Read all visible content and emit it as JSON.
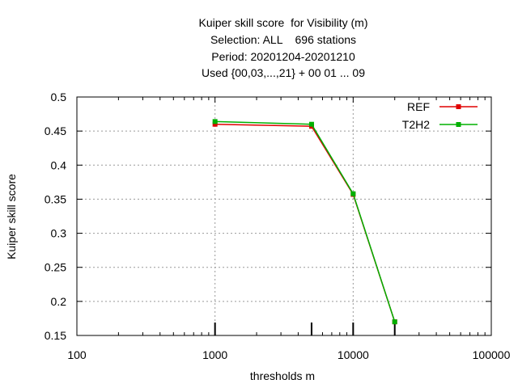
{
  "chart_data": {
    "type": "line",
    "title_lines": [
      "Kuiper skill score  for Visibility (m)",
      "Selection: ALL    696 stations",
      "Period: 20201204-20201210",
      "Used {00,03,...,21} + 00 01 ... 09"
    ],
    "xlabel": "thresholds m",
    "ylabel": "Kuiper skill score",
    "x_scale": "log",
    "xlim": [
      100,
      100000
    ],
    "ylim": [
      0.15,
      0.5
    ],
    "x_ticks": [
      100,
      1000,
      10000,
      100000
    ],
    "x_tick_labels": [
      "100",
      "1000",
      "10000",
      "100000"
    ],
    "y_ticks": [
      0.15,
      0.2,
      0.25,
      0.3,
      0.35,
      0.4,
      0.45,
      0.5
    ],
    "y_tick_labels": [
      "0.15",
      "0.2",
      "0.25",
      "0.3",
      "0.35",
      "0.4",
      "0.45",
      "0.5"
    ],
    "grid": true,
    "legend_position": "top-right",
    "x": [
      1000,
      5000,
      10000,
      20000
    ],
    "series": [
      {
        "name": "REF",
        "color": "#e00000",
        "values": [
          0.46,
          0.457,
          0.357,
          0.17
        ]
      },
      {
        "name": "T2H2",
        "color": "#00b000",
        "values": [
          0.464,
          0.46,
          0.358,
          0.17
        ]
      }
    ],
    "data_ticks_x": [
      1000,
      5000,
      10000,
      20000
    ]
  }
}
